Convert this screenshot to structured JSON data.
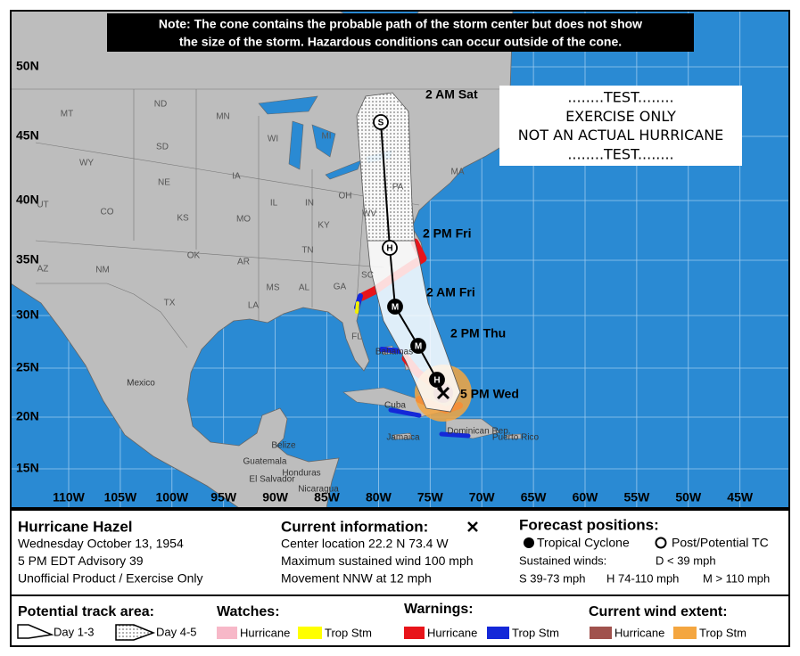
{
  "note": [
    "Note: The cone contains the probable path of the storm center but does not show",
    "the size of the storm. Hazardous conditions can occur outside of the cone."
  ],
  "test_box": [
    "........TEST........",
    "EXERCISE ONLY",
    "NOT AN ACTUAL HURRICANE",
    "........TEST........"
  ],
  "map": {
    "lat_labels": [
      "50N",
      "45N",
      "40N",
      "35N",
      "30N",
      "25N",
      "20N",
      "15N"
    ],
    "lon_labels": [
      "110W",
      "105W",
      "100W",
      "95W",
      "90W",
      "85W",
      "80W",
      "75W",
      "70W",
      "65W",
      "60W",
      "55W",
      "50W",
      "45W"
    ],
    "forecast_labels": [
      "2 AM Sat",
      "2 PM Fri",
      "2 AM Fri",
      "2 PM Thu",
      "5 PM Wed"
    ],
    "forecast_symbols": [
      "S",
      "H",
      "M",
      "M",
      "H"
    ],
    "place_labels": [
      "MT",
      "ND",
      "MN",
      "WI",
      "MI",
      "SD",
      "WY",
      "NE",
      "IA",
      "IL",
      "IN",
      "OH",
      "PA",
      "CO",
      "KS",
      "MO",
      "KY",
      "WV",
      "OK",
      "AR",
      "TN",
      "AZ",
      "NM",
      "TX",
      "MS",
      "AL",
      "GA",
      "SC",
      "LA",
      "FL",
      "MA",
      "UT",
      "Mexico",
      "Cuba",
      "Bahamas",
      "Jamaica",
      "Dominican Rep.",
      "Puerto Rico",
      "Belize",
      "Guatemala",
      "Honduras",
      "El Salvador",
      "Nicaragua"
    ]
  },
  "legend": {
    "storm": {
      "title": "Hurricane Hazel",
      "lines": [
        "Wednesday October 13, 1954",
        "5 PM EDT Advisory 39",
        "Unofficial Product / Exercise Only"
      ]
    },
    "current": {
      "title": "Current information:",
      "lines": [
        "Center location 22.2 N 73.4 W",
        "Maximum sustained wind 100 mph",
        "Movement NNW at 12 mph"
      ]
    },
    "forecast": {
      "title": "Forecast positions:",
      "tropical": "Tropical Cyclone",
      "post": "Post/Potential TC",
      "winds_title": "Sustained winds:",
      "d": "D < 39 mph",
      "s": "S 39-73 mph",
      "h": "H 74-110 mph",
      "m": "M > 110 mph"
    },
    "track": {
      "title": "Potential track area:",
      "day13": "Day 1-3",
      "day45": "Day 4-5"
    },
    "watches": {
      "title": "Watches:",
      "hurricane": "Hurricane",
      "trop_stm": "Trop Stm"
    },
    "warnings": {
      "title": "Warnings:",
      "hurricane": "Hurricane",
      "trop_stm": "Trop Stm"
    },
    "wind": {
      "title": "Current wind extent:",
      "hurricane": "Hurricane",
      "trop_stm": "Trop Stm"
    }
  }
}
